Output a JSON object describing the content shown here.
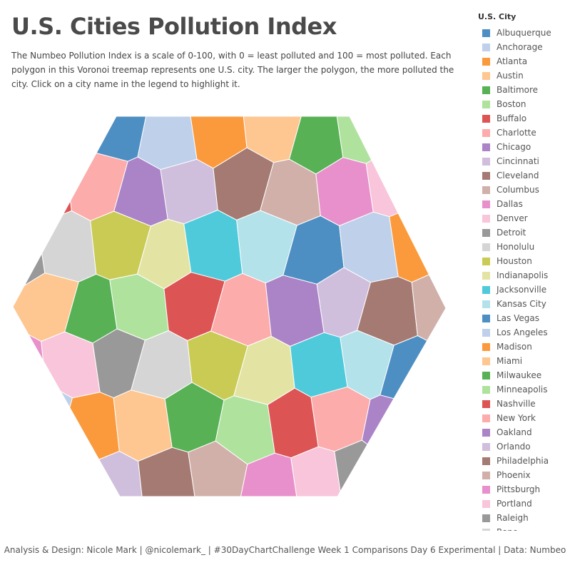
{
  "title": "U.S. Cities Pollution Index",
  "description": "The Numbeo Pollution Index is a scale of 0-100, with 0 = least polluted and 100 = most polluted. Each polygon in this Voronoi treemap represents one U.S. city. The larger the polygon, the more polluted the city. Click on a city name in the legend to highlight it.",
  "legend_title": "U.S. City",
  "footer": "Analysis & Design: Nicole Mark | @nicolemark_ | #30DayChartChallenge Week 1 Comparisons Day 6 Experimental | Data: Numbeo",
  "chart_data": {
    "type": "voronoi-treemap",
    "title": "U.S. Cities Pollution Index",
    "legend_title": "U.S. City",
    "legend_placement": "right",
    "cities": [
      {
        "name": "Albuquerque",
        "color": "#4e8fc3"
      },
      {
        "name": "Anchorage",
        "color": "#bed0ea"
      },
      {
        "name": "Atlanta",
        "color": "#fb9a3c"
      },
      {
        "name": "Austin",
        "color": "#fec690"
      },
      {
        "name": "Baltimore",
        "color": "#58b155"
      },
      {
        "name": "Boston",
        "color": "#afe29d"
      },
      {
        "name": "Buffalo",
        "color": "#dd5454"
      },
      {
        "name": "Charlotte",
        "color": "#fcacaa"
      },
      {
        "name": "Chicago",
        "color": "#ab84c7"
      },
      {
        "name": "Cincinnati",
        "color": "#d0bedd"
      },
      {
        "name": "Cleveland",
        "color": "#a47a72"
      },
      {
        "name": "Columbus",
        "color": "#d2b0aa"
      },
      {
        "name": "Dallas",
        "color": "#e890cb"
      },
      {
        "name": "Denver",
        "color": "#f8c5da"
      },
      {
        "name": "Detroit",
        "color": "#999999"
      },
      {
        "name": "Honolulu",
        "color": "#d5d5d5"
      },
      {
        "name": "Houston",
        "color": "#cacb54"
      },
      {
        "name": "Indianapolis",
        "color": "#e3e4a4"
      },
      {
        "name": "Jacksonville",
        "color": "#4fcada"
      },
      {
        "name": "Kansas City",
        "color": "#b3e2ea"
      },
      {
        "name": "Las Vegas",
        "color": "#4e8fc3"
      },
      {
        "name": "Los Angeles",
        "color": "#bed0ea"
      },
      {
        "name": "Madison",
        "color": "#fb9a3c"
      },
      {
        "name": "Miami",
        "color": "#fec690"
      },
      {
        "name": "Milwaukee",
        "color": "#58b155"
      },
      {
        "name": "Minneapolis",
        "color": "#afe29d"
      },
      {
        "name": "Nashville",
        "color": "#dd5454"
      },
      {
        "name": "New York",
        "color": "#fcacaa"
      },
      {
        "name": "Oakland",
        "color": "#ab84c7"
      },
      {
        "name": "Orlando",
        "color": "#d0bedd"
      },
      {
        "name": "Philadelphia",
        "color": "#a47a72"
      },
      {
        "name": "Phoenix",
        "color": "#d2b0aa"
      },
      {
        "name": "Pittsburgh",
        "color": "#e890cb"
      },
      {
        "name": "Portland",
        "color": "#f8c5da"
      },
      {
        "name": "Raleigh",
        "color": "#999999"
      },
      {
        "name": "Reno",
        "color": "#d5d5d5"
      }
    ],
    "cell_colors": [
      "#4e8fc3",
      "#bed0ea",
      "#fb9a3c",
      "#fec690",
      "#58b155",
      "#afe29d",
      "#dd5454",
      "#fcacaa",
      "#ab84c7",
      "#d0bedd",
      "#a47a72",
      "#d2b0aa",
      "#e890cb",
      "#f8c5da",
      "#999999",
      "#d5d5d5",
      "#cacb54",
      "#e3e4a4",
      "#4fcada",
      "#b3e2ea"
    ]
  }
}
